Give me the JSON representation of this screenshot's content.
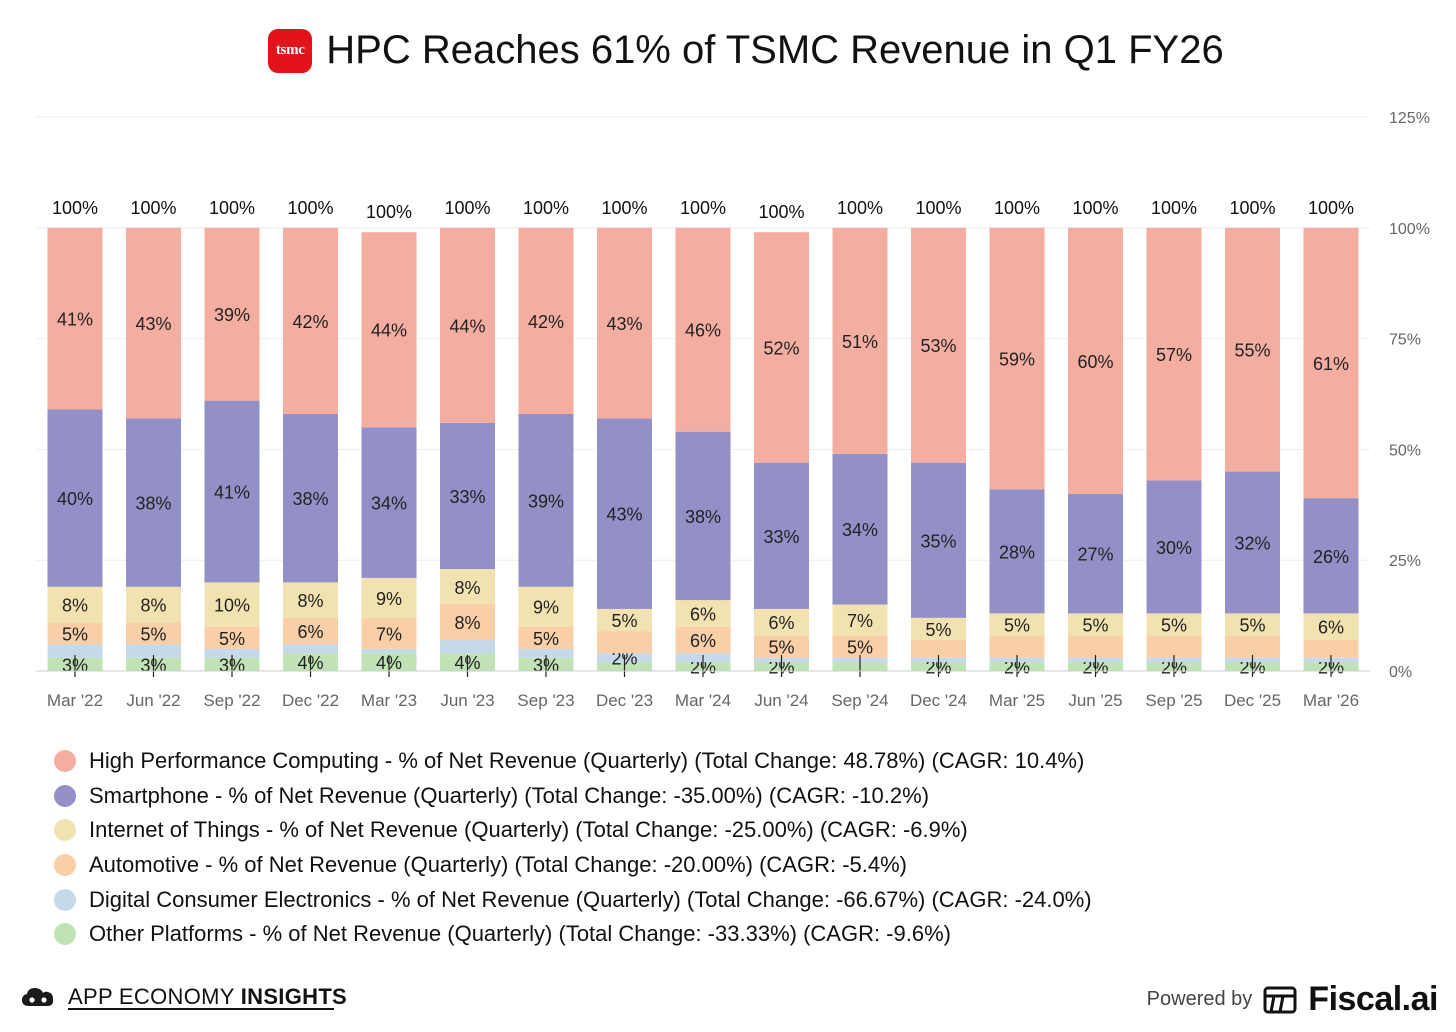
{
  "header": {
    "logo_text": "tsmc",
    "title": "HPC Reaches 61% of TSMC Revenue in Q1 FY26",
    "logo_color": "#e3131b"
  },
  "chart_data": {
    "type": "bar",
    "stacked": true,
    "categories": [
      "Mar '22",
      "Jun '22",
      "Sep '22",
      "Dec '22",
      "Mar '23",
      "Jun '23",
      "Sep '23",
      "Dec '23",
      "Mar '24",
      "Jun '24",
      "Sep '24",
      "Dec '24",
      "Mar '25",
      "Jun '25",
      "Sep '25",
      "Dec '25",
      "Mar '26"
    ],
    "totals": [
      100,
      100,
      100,
      100,
      100,
      100,
      100,
      100,
      100,
      100,
      100,
      100,
      100,
      100,
      100,
      100,
      100
    ],
    "total_label_suffix": "%",
    "y_ticks": [
      "0%",
      "25%",
      "50%",
      "75%",
      "100%",
      "125%"
    ],
    "ylim": [
      0,
      125
    ],
    "y_axis_side": "right",
    "grid": true,
    "legend_position": "bottom",
    "series": [
      {
        "name": "Other Platforms - % of Net Revenue (Quarterly) (Total Change: -33.33%) (CAGR: -9.6%)",
        "color": "#bfe3b4",
        "values": [
          3,
          3,
          3,
          4,
          4,
          4,
          3,
          2,
          2,
          2,
          2,
          2,
          2,
          2,
          2,
          2,
          2
        ],
        "labels": [
          "3%",
          "3%",
          "3%",
          "4%",
          "4%",
          "4%",
          "3%",
          "",
          "2%",
          "2%",
          "",
          "2%",
          "2%",
          "2%",
          "2%",
          "2%",
          "2%"
        ]
      },
      {
        "name": "Digital Consumer Electronics - % of Net Revenue (Quarterly) (Total Change: -66.67%) (CAGR: -24.0%)",
        "color": "#c6d9ea",
        "values": [
          3,
          3,
          2,
          2,
          1,
          3,
          2,
          2,
          2,
          1,
          1,
          1,
          1,
          1,
          1,
          1,
          1
        ],
        "labels": [
          "",
          "",
          "",
          "",
          "",
          "",
          "",
          "2%",
          "",
          "",
          "",
          "",
          "",
          "",
          "",
          "",
          ""
        ]
      },
      {
        "name": "Automotive - % of Net Revenue (Quarterly) (Total Change: -20.00%) (CAGR: -5.4%)",
        "color": "#f8cfa6",
        "values": [
          5,
          5,
          5,
          6,
          7,
          8,
          5,
          5,
          6,
          5,
          5,
          4,
          5,
          5,
          5,
          5,
          4
        ],
        "labels": [
          "5%",
          "5%",
          "5%",
          "6%",
          "7%",
          "8%",
          "5%",
          "",
          "6%",
          "5%",
          "5%",
          "",
          "",
          "",
          "",
          "",
          ""
        ]
      },
      {
        "name": "Internet of Things - % of Net Revenue (Quarterly) (Total Change: -25.00%) (CAGR: -6.9%)",
        "color": "#f1e2b0",
        "values": [
          8,
          8,
          10,
          8,
          9,
          8,
          9,
          5,
          6,
          6,
          7,
          5,
          5,
          5,
          5,
          5,
          6
        ],
        "labels": [
          "8%",
          "8%",
          "10%",
          "8%",
          "9%",
          "8%",
          "9%",
          "5%",
          "6%",
          "6%",
          "7%",
          "5%",
          "5%",
          "5%",
          "5%",
          "5%",
          "6%"
        ]
      },
      {
        "name": "Smartphone - % of Net Revenue (Quarterly) (Total Change: -35.00%) (CAGR: -10.2%)",
        "color": "#9290c7",
        "values": [
          40,
          38,
          41,
          38,
          34,
          33,
          39,
          43,
          38,
          33,
          34,
          35,
          28,
          27,
          30,
          32,
          26
        ],
        "labels": [
          "40%",
          "38%",
          "41%",
          "38%",
          "34%",
          "33%",
          "39%",
          "43%",
          "38%",
          "33%",
          "34%",
          "35%",
          "28%",
          "27%",
          "30%",
          "32%",
          "26%"
        ]
      },
      {
        "name": "High Performance Computing - % of Net Revenue (Quarterly) (Total Change: 48.78%) (CAGR: 10.4%)",
        "color": "#f3aea1",
        "values": [
          41,
          43,
          39,
          42,
          44,
          44,
          42,
          43,
          46,
          52,
          51,
          53,
          59,
          60,
          57,
          55,
          61
        ],
        "labels": [
          "41%",
          "43%",
          "39%",
          "42%",
          "44%",
          "44%",
          "42%",
          "43%",
          "46%",
          "52%",
          "51%",
          "53%",
          "59%",
          "60%",
          "57%",
          "55%",
          "61%"
        ]
      }
    ]
  },
  "legend": [
    {
      "label": "High Performance Computing - % of Net Revenue (Quarterly) (Total Change: 48.78%) (CAGR: 10.4%)",
      "color": "#f3aea1"
    },
    {
      "label": "Smartphone - % of Net Revenue (Quarterly) (Total Change: -35.00%) (CAGR: -10.2%)",
      "color": "#9290c7"
    },
    {
      "label": "Internet of Things - % of Net Revenue (Quarterly) (Total Change: -25.00%) (CAGR: -6.9%)",
      "color": "#f1e2b0"
    },
    {
      "label": "Automotive - % of Net Revenue (Quarterly) (Total Change: -20.00%) (CAGR: -5.4%)",
      "color": "#f8cfa6"
    },
    {
      "label": "Digital Consumer Electronics - % of Net Revenue (Quarterly) (Total Change: -66.67%) (CAGR: -24.0%)",
      "color": "#c6d9ea"
    },
    {
      "label": "Other Platforms - % of Net Revenue (Quarterly) (Total Change: -33.33%) (CAGR: -9.6%)",
      "color": "#bfe3b4"
    }
  ],
  "footer": {
    "brand_light": "APP ECONOMY ",
    "brand_bold": "INSIGHTS",
    "brand_icon": "cloud-icon",
    "powered_label": "Powered by",
    "powered_brand": "Fiscal.ai",
    "powered_icon": "fiscal-logo-icon"
  }
}
